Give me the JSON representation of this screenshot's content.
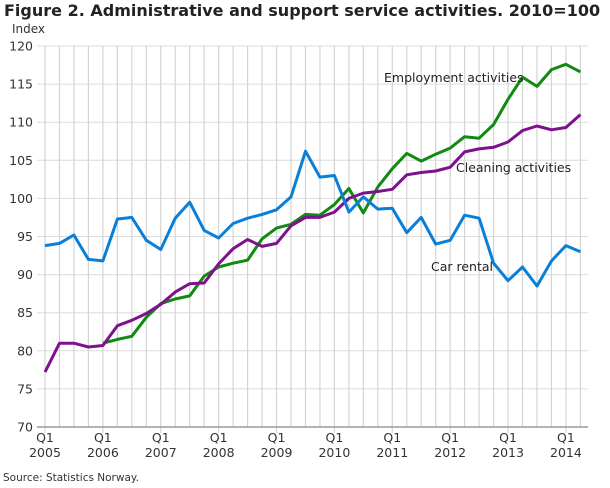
{
  "chart_data": {
    "type": "line",
    "title": "Figure 2. Administrative and support service activities. 2010=100",
    "ylabel": "Index",
    "xlabel": "",
    "source": "Source: Statistics Norway.",
    "ylim": [
      70,
      120
    ],
    "yticks": [
      70,
      75,
      80,
      85,
      90,
      95,
      100,
      105,
      110,
      115,
      120
    ],
    "xticks": [
      {
        "q": "Q1",
        "year": "2005"
      },
      {
        "q": "Q1",
        "year": "2006"
      },
      {
        "q": "Q1",
        "year": "2007"
      },
      {
        "q": "Q1",
        "year": "2008"
      },
      {
        "q": "Q1",
        "year": "2009"
      },
      {
        "q": "Q1",
        "year": "2010"
      },
      {
        "q": "Q1",
        "year": "2011"
      },
      {
        "q": "Q1",
        "year": "2012"
      },
      {
        "q": "Q1",
        "year": "2013"
      },
      {
        "q": "Q1",
        "year": "2014"
      }
    ],
    "x_start": "2005Q1",
    "x_end": "2014Q2",
    "grid": true,
    "legend": "inline labels",
    "series": [
      {
        "name": "Employment activities",
        "color": "#108a10",
        "start": "2006Q1",
        "values": [
          81.0,
          81.5,
          81.9,
          84.4,
          86.2,
          86.8,
          87.2,
          89.8,
          91.0,
          91.5,
          91.9,
          94.7,
          96.1,
          96.6,
          97.9,
          97.8,
          99.2,
          101.3,
          98.1,
          101.5,
          103.9,
          105.9,
          104.9,
          105.8,
          106.6,
          108.1,
          107.9,
          109.7,
          113.0,
          115.9,
          114.7,
          116.9,
          117.6,
          116.6
        ]
      },
      {
        "name": "Cleaning activities",
        "color": "#7d128c",
        "start": "2005Q1",
        "values": [
          77.2,
          81.0,
          81.0,
          80.5,
          80.7,
          83.3,
          84.0,
          84.9,
          86.1,
          87.7,
          88.8,
          88.9,
          91.4,
          93.4,
          94.6,
          93.7,
          94.1,
          96.4,
          97.5,
          97.5,
          98.2,
          100.0,
          100.7,
          100.9,
          101.2,
          103.1,
          103.4,
          103.6,
          104.1,
          106.1,
          106.5,
          106.7,
          107.4,
          108.9,
          109.5,
          109.0,
          109.3,
          111.0
        ]
      },
      {
        "name": "Car rental",
        "color": "#0a7fd8",
        "start": "2005Q1",
        "values": [
          93.8,
          94.1,
          95.2,
          92.0,
          91.8,
          97.3,
          97.5,
          94.5,
          93.3,
          97.4,
          99.5,
          95.8,
          94.8,
          96.7,
          97.4,
          97.9,
          98.5,
          100.2,
          106.2,
          102.8,
          103.0,
          98.2,
          100.2,
          98.6,
          98.7,
          95.5,
          97.5,
          94.0,
          94.5,
          97.8,
          97.4,
          91.5,
          89.2,
          91.0,
          88.5,
          91.8,
          93.8,
          93.0
        ]
      }
    ]
  }
}
